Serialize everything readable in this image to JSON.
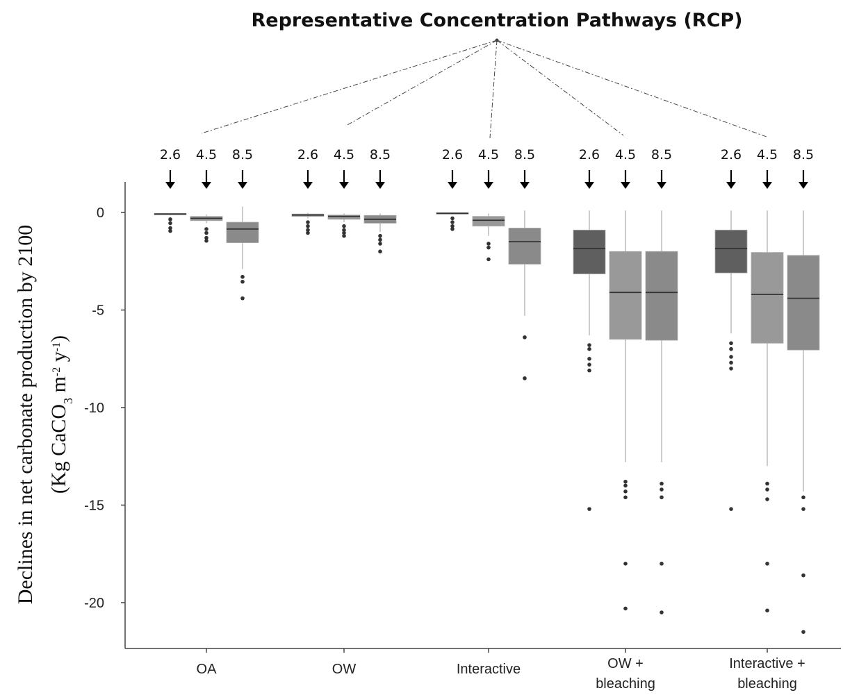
{
  "chart_data": {
    "type": "box",
    "title": "Representative Concentration Pathways (RCP)",
    "ylabel_line1": "Declines in net carbonate production by 2100",
    "ylabel_line2_parts": [
      "(Kg CaCO",
      "3",
      " m",
      "-2",
      " y",
      "-1",
      ")"
    ],
    "yticks": [
      0,
      -5,
      -10,
      -15,
      -20
    ],
    "ylim": [
      -22.5,
      1.5
    ],
    "rcp_levels": [
      "2.6",
      "4.5",
      "8.5"
    ],
    "groups": [
      {
        "label_lines": [
          "OA"
        ],
        "boxes": [
          {
            "rcp": "2.6",
            "whisker_high": -0.02,
            "q3": -0.05,
            "median": -0.08,
            "q1": -0.12,
            "whisker_low": -0.15,
            "outliers": [
              -0.35,
              -0.55,
              -0.8,
              -0.95
            ],
            "fill": "#808080"
          },
          {
            "rcp": "4.5",
            "whisker_high": -0.1,
            "q3": -0.2,
            "median": -0.3,
            "q1": -0.42,
            "whisker_low": -0.55,
            "outliers": [
              -0.85,
              -1.05,
              -1.3,
              -1.45
            ],
            "fill": "#999999"
          },
          {
            "rcp": "8.5",
            "whisker_high": 0.3,
            "q3": -0.5,
            "median": -0.85,
            "q1": -1.55,
            "whisker_low": -2.9,
            "outliers": [
              -3.3,
              -3.55,
              -4.4
            ],
            "fill": "#8a8a8a"
          }
        ]
      },
      {
        "label_lines": [
          "OW"
        ],
        "boxes": [
          {
            "rcp": "2.6",
            "whisker_high": -0.02,
            "q3": -0.08,
            "median": -0.13,
            "q1": -0.2,
            "whisker_low": -0.3,
            "outliers": [
              -0.5,
              -0.7,
              -0.9,
              -1.05
            ],
            "fill": "#808080"
          },
          {
            "rcp": "4.5",
            "whisker_high": -0.05,
            "q3": -0.13,
            "median": -0.2,
            "q1": -0.35,
            "whisker_low": -0.5,
            "outliers": [
              -0.7,
              -0.9,
              -1.05,
              -1.2
            ],
            "fill": "#999999"
          },
          {
            "rcp": "8.5",
            "whisker_high": -0.05,
            "q3": -0.15,
            "median": -0.35,
            "q1": -0.55,
            "whisker_low": -1.0,
            "outliers": [
              -1.2,
              -1.4,
              -1.6,
              -2.0
            ],
            "fill": "#8a8a8a"
          }
        ]
      },
      {
        "label_lines": [
          "Interactive"
        ],
        "boxes": [
          {
            "rcp": "2.6",
            "whisker_high": -0.01,
            "q3": -0.02,
            "median": -0.04,
            "q1": -0.07,
            "whisker_low": -0.1,
            "outliers": [
              -0.3,
              -0.5,
              -0.7,
              -0.85
            ],
            "fill": "#808080"
          },
          {
            "rcp": "4.5",
            "whisker_high": -0.05,
            "q3": -0.2,
            "median": -0.4,
            "q1": -0.7,
            "whisker_low": -1.2,
            "outliers": [
              -1.6,
              -1.8,
              -2.4
            ],
            "fill": "#999999"
          },
          {
            "rcp": "8.5",
            "whisker_high": 0.1,
            "q3": -0.8,
            "median": -1.5,
            "q1": -2.65,
            "whisker_low": -5.3,
            "outliers": [
              -6.4,
              -8.5
            ],
            "fill": "#8a8a8a"
          }
        ]
      },
      {
        "label_lines": [
          "OW +",
          "bleaching"
        ],
        "boxes": [
          {
            "rcp": "2.6",
            "whisker_high": 0.1,
            "q3": -0.9,
            "median": -1.85,
            "q1": -3.15,
            "whisker_low": -6.3,
            "outliers": [
              -6.8,
              -7.0,
              -7.5,
              -7.8,
              -8.1,
              -15.2
            ],
            "fill": "#5f5f5f"
          },
          {
            "rcp": "4.5",
            "whisker_high": 0.1,
            "q3": -2.0,
            "median": -4.1,
            "q1": -6.5,
            "whisker_low": -12.8,
            "outliers": [
              -13.8,
              -14.0,
              -14.3,
              -14.6,
              -18.0,
              -20.3
            ],
            "fill": "#999999"
          },
          {
            "rcp": "8.5",
            "whisker_high": 0.1,
            "q3": -2.0,
            "median": -4.1,
            "q1": -6.55,
            "whisker_low": -12.8,
            "outliers": [
              -13.9,
              -14.2,
              -14.6,
              -18.0,
              -20.5
            ],
            "fill": "#8a8a8a"
          }
        ]
      },
      {
        "label_lines": [
          "Interactive +",
          "bleaching"
        ],
        "boxes": [
          {
            "rcp": "2.6",
            "whisker_high": 0.1,
            "q3": -0.9,
            "median": -1.85,
            "q1": -3.1,
            "whisker_low": -6.2,
            "outliers": [
              -6.7,
              -7.0,
              -7.4,
              -7.7,
              -8.0,
              -15.2
            ],
            "fill": "#5f5f5f"
          },
          {
            "rcp": "4.5",
            "whisker_high": 0.1,
            "q3": -2.05,
            "median": -4.2,
            "q1": -6.7,
            "whisker_low": -13.0,
            "outliers": [
              -13.9,
              -14.2,
              -14.7,
              -18.0,
              -20.4
            ],
            "fill": "#999999"
          },
          {
            "rcp": "8.5",
            "whisker_high": 0.1,
            "q3": -2.2,
            "median": -4.4,
            "q1": -7.05,
            "whisker_low": -14.3,
            "outliers": [
              -14.6,
              -15.2,
              -18.6,
              -21.5
            ],
            "fill": "#8a8a8a"
          }
        ]
      }
    ]
  }
}
